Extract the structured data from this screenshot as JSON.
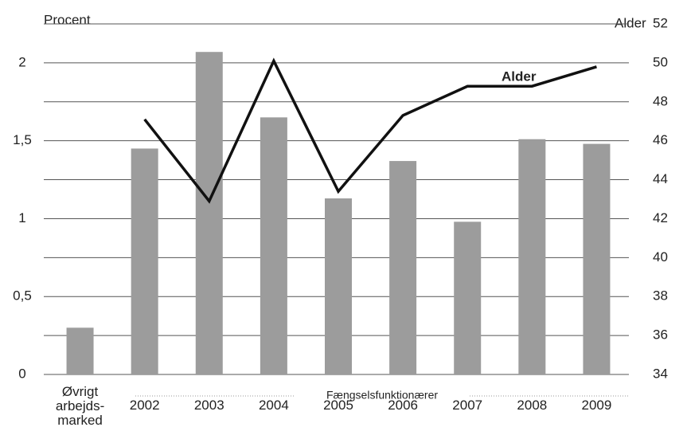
{
  "chart_data": {
    "type": "bar",
    "y_label": "Procent",
    "y2_label": "Alder",
    "group_label": "Fængselsfunktionærer",
    "categories": [
      "Øvrigt arbejds-marked",
      "2002",
      "2003",
      "2004",
      "2005",
      "2006",
      "2007",
      "2008",
      "2009"
    ],
    "series": [
      {
        "type": "bar",
        "color": "#9c9c9c",
        "values": [
          0.3,
          1.45,
          2.07,
          1.65,
          1.13,
          1.37,
          0.98,
          1.51,
          1.48
        ]
      },
      {
        "type": "line",
        "name": "Alder",
        "axis": "y2",
        "color": "#111111",
        "values": [
          null,
          47.1,
          42.9,
          50.1,
          43.4,
          47.3,
          48.8,
          48.8,
          49.8
        ]
      }
    ],
    "ylim": [
      0,
      2.25
    ],
    "yticks": [
      0,
      {
        "value": 0.5,
        "label": "0,5"
      },
      1,
      {
        "value": 1.5,
        "label": "1,5"
      },
      2
    ],
    "y2lim": [
      34,
      52
    ],
    "y2ticks": [
      34,
      36,
      38,
      40,
      42,
      44,
      46,
      48,
      50,
      52
    ],
    "grid": true
  }
}
